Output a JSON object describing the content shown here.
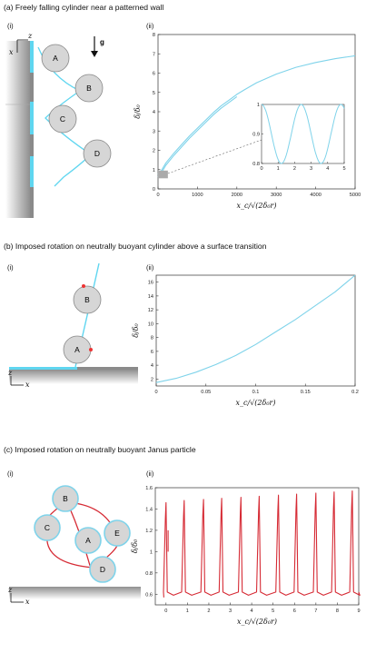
{
  "panels": [
    {
      "title": "(a) Freely falling cylinder near a patterned wall",
      "sub_i": "(i)",
      "sub_ii": "(ii)",
      "schematic": {
        "circles": [
          "A",
          "B",
          "C",
          "D"
        ],
        "axis_x": "x",
        "axis_z": "z",
        "gravity": "g"
      },
      "ylabel": "δ/δ₀",
      "xlabel": "x_c/√(2δ₀r)"
    },
    {
      "title": "(b) Imposed rotation on neutrally buoyant cylinder above a surface transition",
      "sub_i": "(i)",
      "sub_ii": "(ii)",
      "schematic": {
        "circles": [
          "B",
          "A"
        ],
        "axis_x": "x",
        "axis_z": "z"
      },
      "ylabel": "δ/δ₀",
      "xlabel": "x_c/√(2δ₀r)"
    },
    {
      "title": "(c)    Imposed rotation on neutrally buoyant Janus particle",
      "sub_i": "(i)",
      "sub_ii": "(ii)",
      "schematic": {
        "circles": [
          "B",
          "C",
          "A",
          "E",
          "D"
        ],
        "axis_x": "x",
        "axis_z": "z"
      },
      "ylabel": "δ/δ₀",
      "xlabel": "x_c/√(2δ₀r)"
    }
  ],
  "chart_data": [
    {
      "type": "line",
      "xlim": [
        0,
        5000
      ],
      "ylim": [
        0,
        8
      ],
      "x_ticks": [
        "0",
        "1000",
        "2000",
        "3000",
        "4000",
        "5000"
      ],
      "y_ticks": [
        "0",
        "1",
        "2",
        "3",
        "4",
        "5",
        "6",
        "7",
        "8"
      ],
      "series": [
        {
          "x": [
            0,
            100,
            200,
            400,
            600,
            800,
            1000,
            1200,
            1400,
            1600,
            1800,
            2000,
            2200,
            2500,
            3000,
            3500,
            4000,
            4500,
            5000
          ],
          "y": [
            0.75,
            1.0,
            1.35,
            1.85,
            2.3,
            2.75,
            3.15,
            3.55,
            3.95,
            4.3,
            4.6,
            4.9,
            5.15,
            5.5,
            5.95,
            6.3,
            6.55,
            6.75,
            6.9
          ]
        }
      ],
      "color": "#7fd3ea",
      "inset": {
        "xlim": [
          0,
          5
        ],
        "ylim": [
          0.8,
          1.0
        ],
        "x_ticks": [
          "0",
          "1",
          "2",
          "3",
          "4",
          "5"
        ],
        "y_ticks": [
          "0.8",
          "0.9",
          "1"
        ]
      }
    },
    {
      "type": "line",
      "xlim": [
        0,
        0.2
      ],
      "ylim": [
        1,
        17
      ],
      "x_ticks": [
        "0",
        "0.05",
        "0.1",
        "0.15",
        "0.2"
      ],
      "y_ticks": [
        "2",
        "4",
        "6",
        "8",
        "10",
        "12",
        "14",
        "16"
      ],
      "series": [
        {
          "x": [
            0,
            0.02,
            0.04,
            0.06,
            0.08,
            0.1,
            0.12,
            0.14,
            0.16,
            0.18,
            0.2
          ],
          "y": [
            1.5,
            2.1,
            3.0,
            4.1,
            5.4,
            7.0,
            8.8,
            10.6,
            12.6,
            14.6,
            17.0
          ]
        }
      ],
      "color": "#7fd3ea"
    },
    {
      "type": "line",
      "xlim": [
        -0.5,
        9
      ],
      "ylim": [
        0.5,
        1.6
      ],
      "x_ticks": [
        "0",
        "1",
        "2",
        "3",
        "4",
        "5",
        "6",
        "7",
        "8",
        "9"
      ],
      "y_ticks": [
        "0.6",
        "0.8",
        "1",
        "1.2",
        "1.4",
        "1.6"
      ],
      "peaks": [
        0.0,
        0.85,
        1.75,
        2.6,
        3.5,
        4.35,
        5.25,
        6.1,
        7.0,
        7.85,
        8.7
      ],
      "peak_values": [
        1.46,
        1.48,
        1.49,
        1.5,
        1.51,
        1.52,
        1.53,
        1.54,
        1.55,
        1.56,
        1.57
      ],
      "trough": 0.57,
      "color": "#d62b35"
    }
  ]
}
